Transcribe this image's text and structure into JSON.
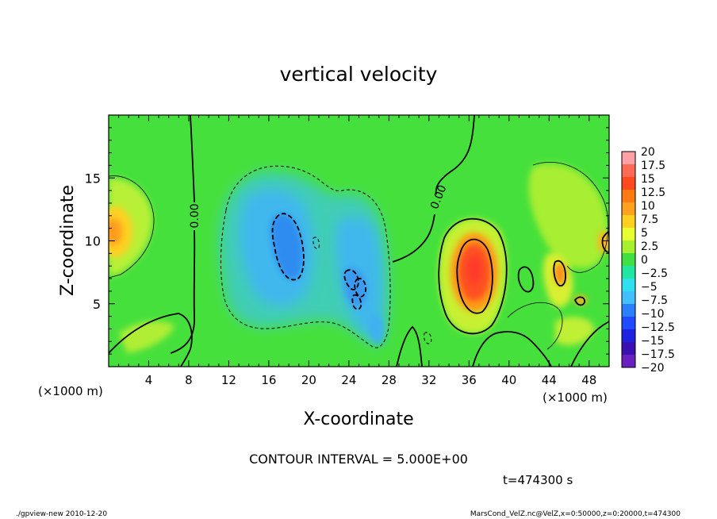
{
  "chart_data": {
    "type": "heatmap",
    "title": "vertical velocity",
    "xlabel": "X-coordinate",
    "ylabel": "Z-coordinate",
    "x_unit_left": "(×1000 m)",
    "x_unit_right": "(×1000 m)",
    "xlim": [
      0,
      50
    ],
    "ylim": [
      0,
      20
    ],
    "xticks": [
      "4",
      "8",
      "12",
      "16",
      "20",
      "24",
      "28",
      "32",
      "36",
      "40",
      "44",
      "48"
    ],
    "yticks": [
      "5",
      "10",
      "15"
    ],
    "contour_interval": "CONTOUR INTERVAL = 5.000E+00",
    "contour_labels": [
      "0.00",
      "0.00"
    ],
    "time_label": "t=474300 s",
    "footer_left": "./gpview-new 2010-12-20",
    "footer_right": "MarsCond_VelZ.nc@VelZ,x=0:50000,z=0:20000,t=474300",
    "colorbar": {
      "labels": [
        "20",
        "17.5",
        "15",
        "12.5",
        "10",
        "7.5",
        "5",
        "2.5",
        "0",
        "-2.5",
        "-5",
        "-7.5",
        "-10",
        "-12.5",
        "-15",
        "-17.5",
        "-20"
      ],
      "colors": [
        "#ff9fa6",
        "#ff6a55",
        "#ff4a20",
        "#ff7a10",
        "#ffa020",
        "#ffd020",
        "#e6ff30",
        "#a6f030",
        "#40e040",
        "#20e6a0",
        "#30e0f0",
        "#40c0ff",
        "#2a80ff",
        "#1f4aff",
        "#2020e0",
        "#3a10b0",
        "#6a20c0"
      ]
    },
    "features": [
      {
        "type": "updraft",
        "x": 0.8,
        "z": 10.9,
        "value": 10
      },
      {
        "type": "updraft",
        "x": 36.5,
        "z": 7.5,
        "value": 17.5
      },
      {
        "type": "updraft",
        "x": 44.5,
        "z": 8.2,
        "value": 10
      },
      {
        "type": "downdraft",
        "x": 18.5,
        "z": 9.5,
        "value": -10
      },
      {
        "type": "downdraft",
        "x": 25,
        "z": 6.5,
        "value": -10
      },
      {
        "type": "downdraft",
        "x": 26.5,
        "z": 3.5,
        "value": -7.5
      }
    ]
  }
}
